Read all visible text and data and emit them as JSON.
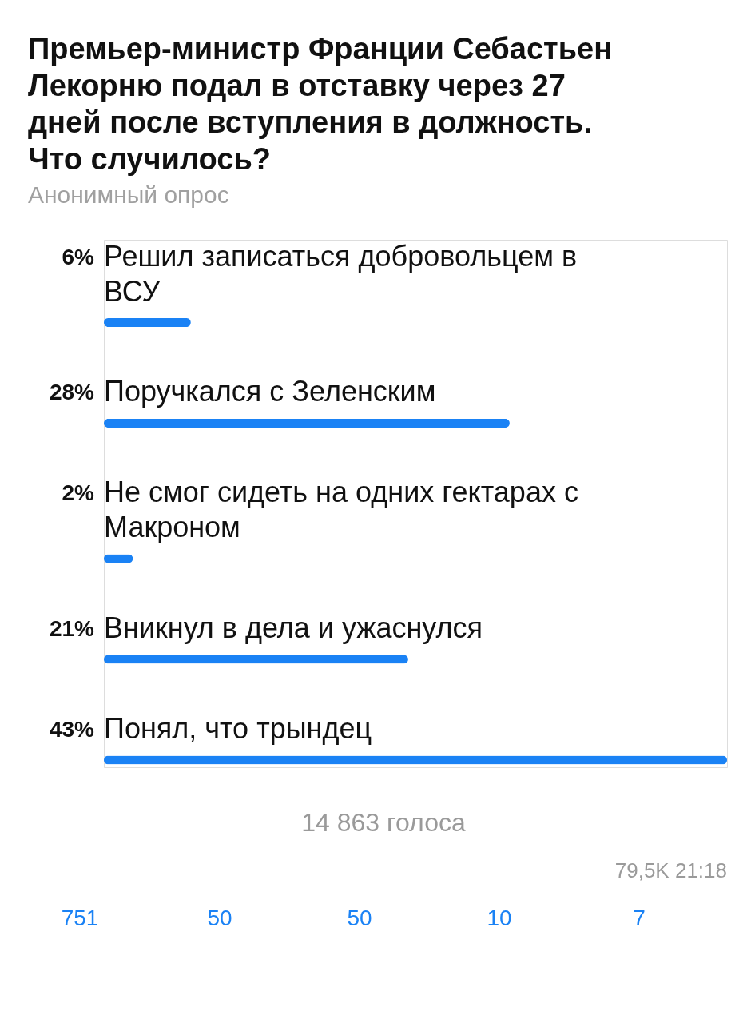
{
  "chart_data": {
    "type": "bar",
    "orientation": "horizontal",
    "title": "Премьер-министр Франции Себастьен Лекорню подал в отставку через 27 дней после вступления в должность. Что случилось?",
    "subtitle": "Анонимный опрос",
    "categories": [
      "Решил записаться добровольцем  в ВСУ",
      "Поручкался с  Зеленским",
      "Не смог сидеть на одних гектарах с Макроном",
      "Вникнул в дела и ужаснулся",
      "Понял, что трындец"
    ],
    "values": [
      6,
      28,
      2,
      21,
      43
    ],
    "value_labels": [
      "6%",
      "28%",
      "2%",
      "21%",
      "43%"
    ],
    "color": "#1a82f5",
    "annotations": [
      "14 863 голоса",
      "79,5K 21:18",
      "751",
      "50",
      "50",
      "10",
      "7"
    ]
  }
}
